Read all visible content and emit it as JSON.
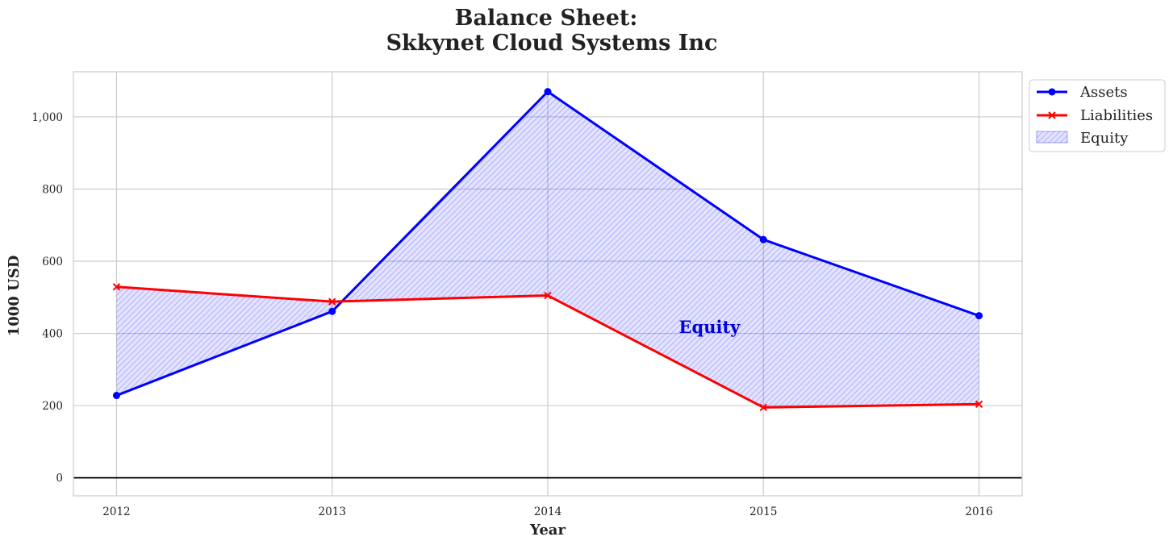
{
  "chart_data": {
    "type": "line",
    "title_lines": [
      "Balance Sheet:",
      "Skkynet Cloud Systems Inc"
    ],
    "xlabel": "Year",
    "ylabel": "1000 USD",
    "x": [
      "2012",
      "2013",
      "2014",
      "2015",
      "2016"
    ],
    "ylim": [
      -50,
      1125
    ],
    "yticks": [
      0,
      200,
      400,
      600,
      800,
      1000
    ],
    "ytick_labels": [
      "0",
      "200",
      "400",
      "600",
      "800",
      "1,000"
    ],
    "grid": true,
    "legend_position": "outside-top-right",
    "series": [
      {
        "name": "Assets",
        "values": [
          228,
          461,
          1070,
          660,
          449
        ],
        "color": "#0000ff",
        "marker": "circle"
      },
      {
        "name": "Liabilities",
        "values": [
          529,
          488,
          505,
          195,
          204
        ],
        "color": "#ff0000",
        "marker": "x"
      }
    ],
    "fill": {
      "name": "Equity",
      "between": [
        "Assets",
        "Liabilities"
      ],
      "color": "#0000ff",
      "pattern": "hatch"
    },
    "annotations": [
      {
        "text": "Equity",
        "x": 2014.75,
        "y": 417,
        "color": "#0000dd"
      }
    ]
  }
}
